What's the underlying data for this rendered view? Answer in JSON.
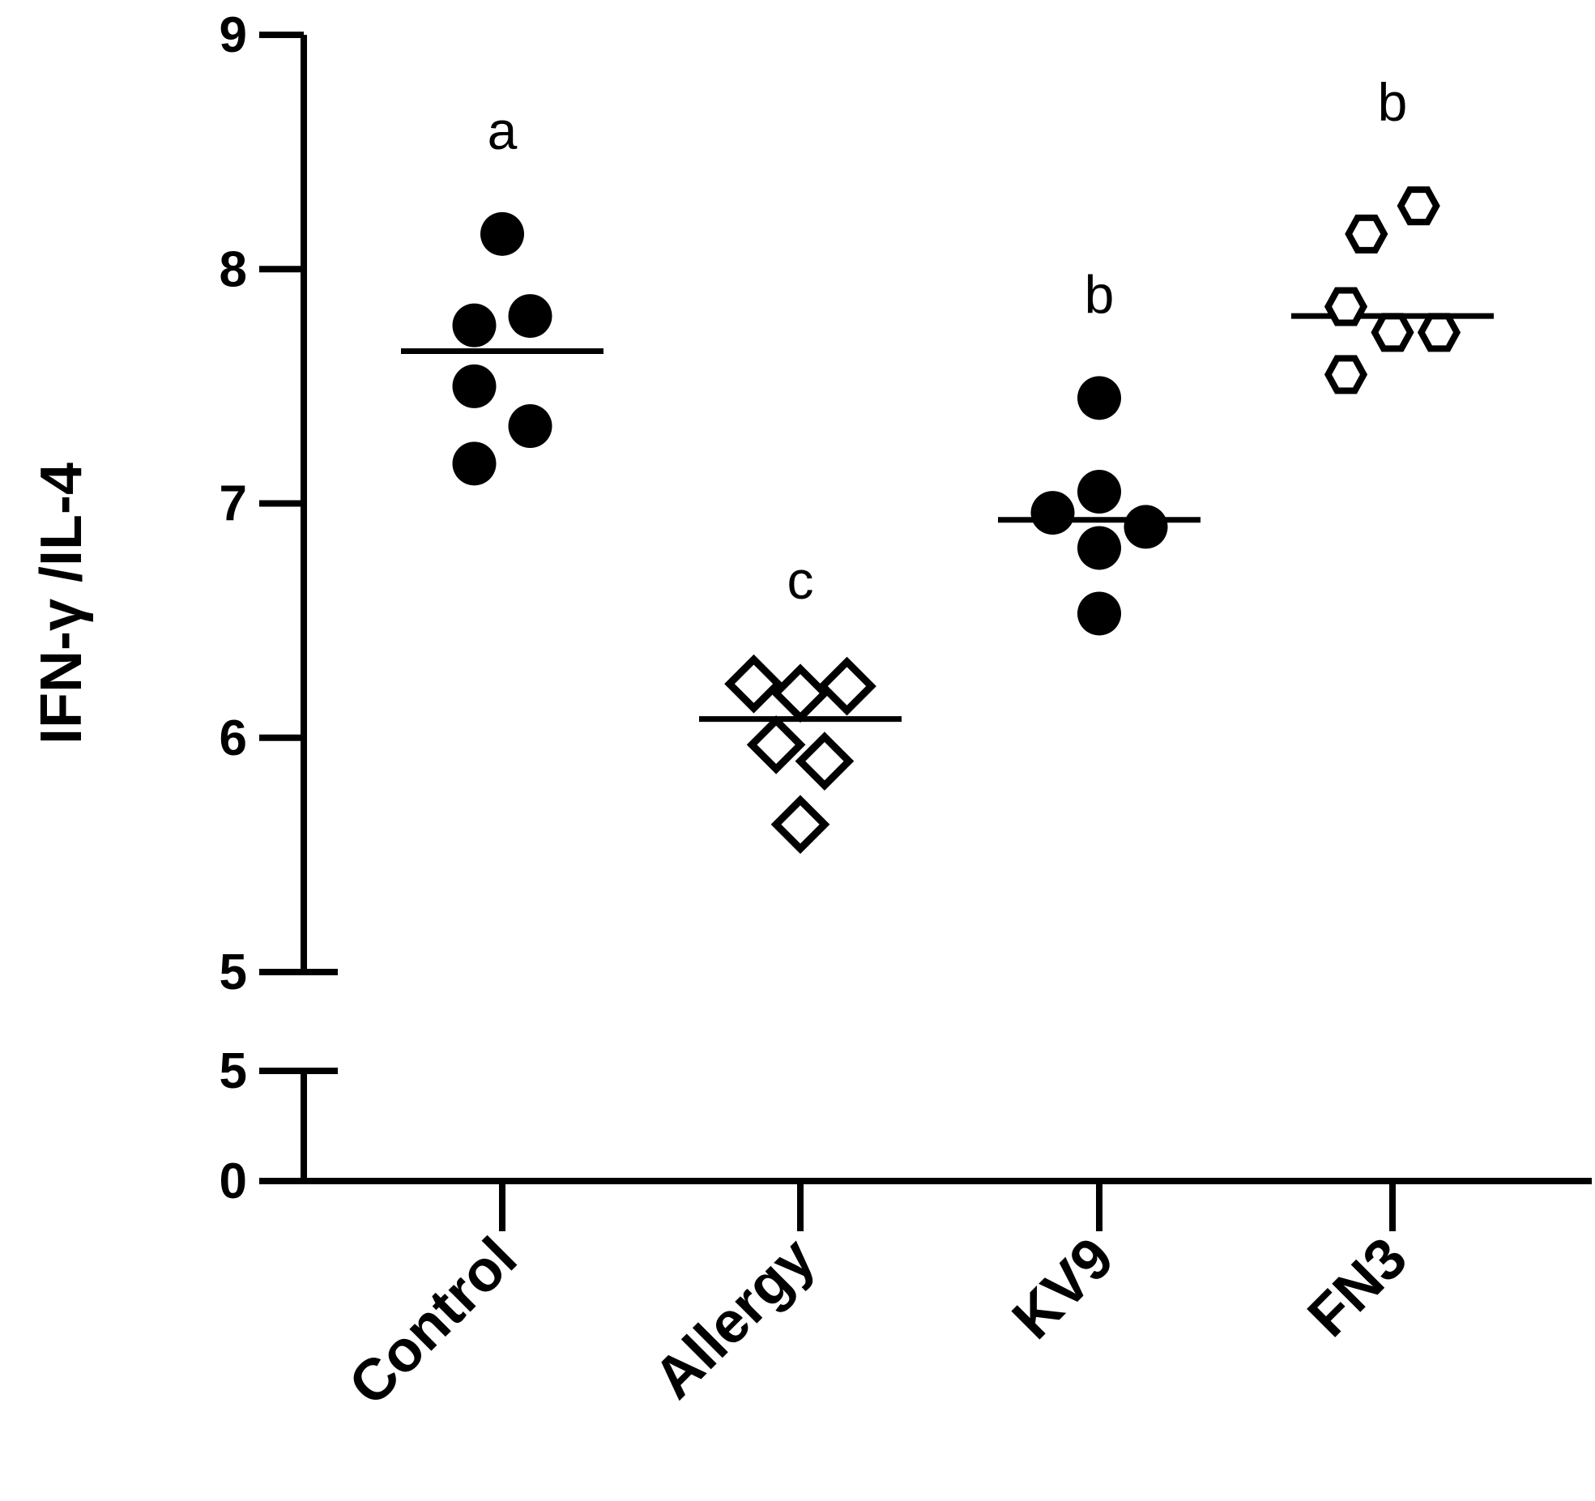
{
  "chart_data": {
    "type": "scatter",
    "ylabel": "IFN-γ /IL-4",
    "xlabel": "",
    "categories": [
      "Control",
      "Allergy",
      "KV9",
      "FN3"
    ],
    "y_upper_range": [
      5,
      9
    ],
    "y_upper_ticks": [
      "5",
      "6",
      "7",
      "8",
      "9"
    ],
    "y_lower_range": [
      0,
      5
    ],
    "y_lower_ticks": [
      "0",
      "5"
    ],
    "axis_break": true,
    "grid": false,
    "legend": "none",
    "series": [
      {
        "category": "Control",
        "marker": "filled-circle",
        "points": [
          {
            "x": 0.0,
            "y": 8.15
          },
          {
            "x": -0.15,
            "y": 7.76
          },
          {
            "x": 0.15,
            "y": 7.8
          },
          {
            "x": -0.15,
            "y": 7.5
          },
          {
            "x": 0.15,
            "y": 7.33
          },
          {
            "x": -0.15,
            "y": 7.17
          }
        ],
        "median": 7.65,
        "letter": "a"
      },
      {
        "category": "Allergy",
        "marker": "open-diamond",
        "points": [
          {
            "x": -0.25,
            "y": 6.23
          },
          {
            "x": 0.0,
            "y": 6.19
          },
          {
            "x": 0.25,
            "y": 6.22
          },
          {
            "x": -0.13,
            "y": 5.97
          },
          {
            "x": 0.13,
            "y": 5.9
          },
          {
            "x": 0.0,
            "y": 5.63
          }
        ],
        "median": 6.08,
        "letter": "c"
      },
      {
        "category": "KV9",
        "marker": "filled-circle",
        "points": [
          {
            "x": 0.0,
            "y": 7.45
          },
          {
            "x": 0.0,
            "y": 7.05
          },
          {
            "x": -0.25,
            "y": 6.96
          },
          {
            "x": 0.25,
            "y": 6.9
          },
          {
            "x": 0.0,
            "y": 6.81
          },
          {
            "x": 0.0,
            "y": 6.53
          }
        ],
        "median": 6.93,
        "letter": "b"
      },
      {
        "category": "FN3",
        "marker": "open-hexagon",
        "points": [
          {
            "x": 0.14,
            "y": 8.27
          },
          {
            "x": -0.14,
            "y": 8.15
          },
          {
            "x": -0.25,
            "y": 7.84
          },
          {
            "x": 0.0,
            "y": 7.73
          },
          {
            "x": 0.25,
            "y": 7.73
          },
          {
            "x": -0.25,
            "y": 7.55
          }
        ],
        "median": 7.8,
        "letter": "b"
      }
    ]
  }
}
